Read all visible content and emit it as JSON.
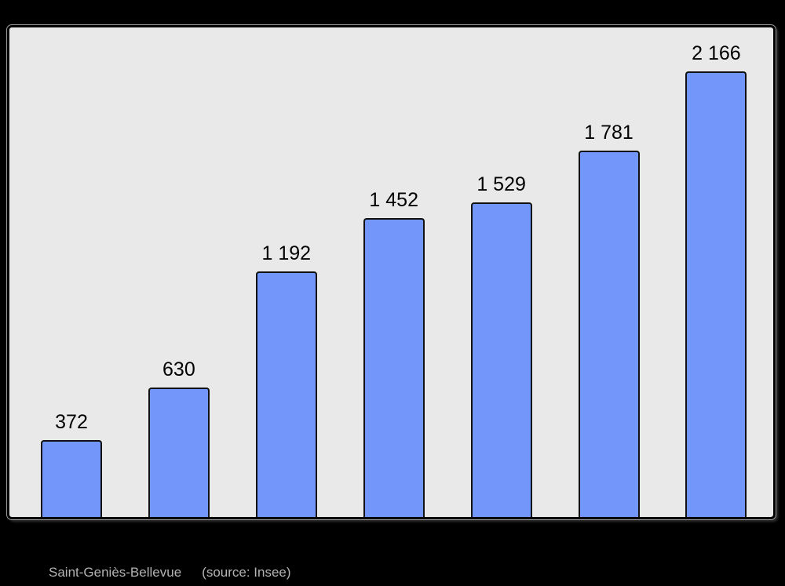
{
  "caption": {
    "title": "Saint-Geniès-Bellevue",
    "source": "(source: Insee)"
  },
  "chart_data": {
    "type": "bar",
    "values": [
      372,
      630,
      1192,
      1452,
      1529,
      1781,
      2166
    ],
    "value_labels": [
      "372",
      "630",
      "1 192",
      "1 452",
      "1 529",
      "1 781",
      "2 166"
    ],
    "title": "",
    "xlabel": "",
    "ylabel": "",
    "ylim": [
      0,
      2380
    ],
    "grid": false,
    "legend": "none",
    "layout_hint": "bars sit on bottom axis of framed gray panel; value labels above each bar; caption below panel",
    "colors": {
      "page_bg": "#000000",
      "plot_bg": "#e9e9e9",
      "panel_border": "#000000",
      "bar_fill": "#7396fa",
      "bar_border": "#111111",
      "value_label": "#000000",
      "caption_text": "#b3b3b3"
    }
  }
}
